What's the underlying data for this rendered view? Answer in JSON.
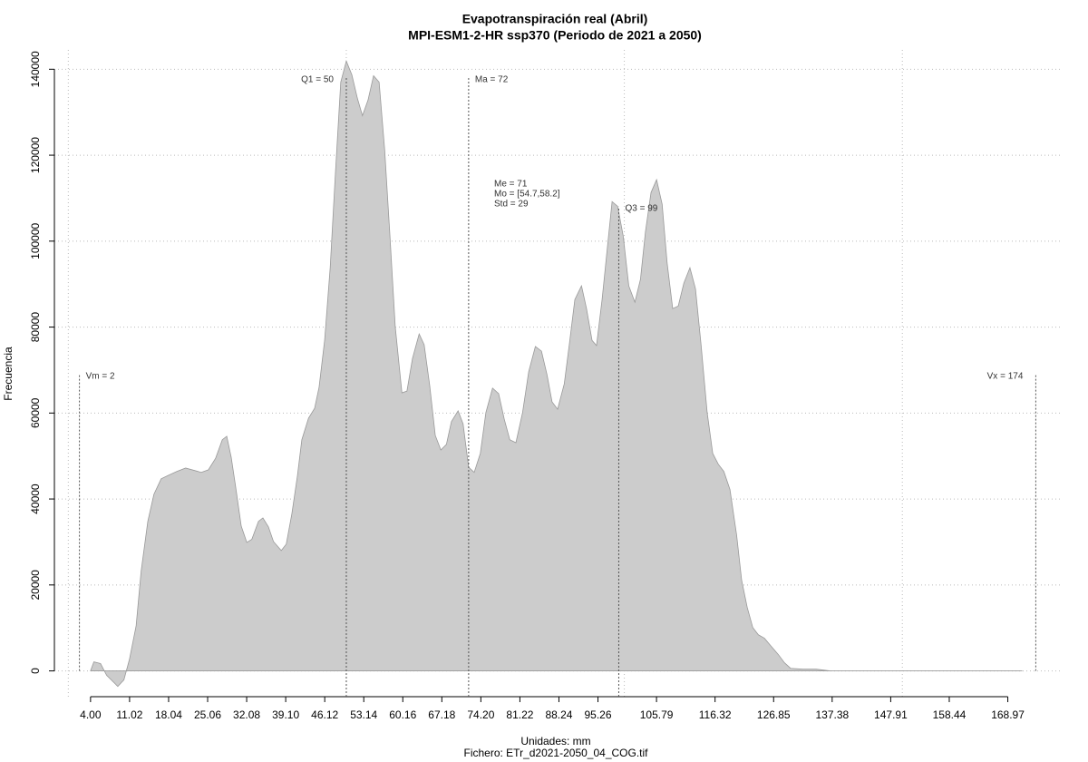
{
  "chart_data": {
    "type": "area",
    "title": "Evapotranspiración real (Abril)",
    "subtitle": "MPI-ESM1-2-HR ssp370 (Periodo de 2021 a 2050)",
    "x_label": "Unidades: mm",
    "caption": "Fichero: ETr_d2021-2050_04_COG.tif",
    "y_label": "Frecuencia",
    "color": "#cccccc",
    "line_color": "#999999",
    "x": [
      4,
      4.6,
      5.8,
      6.9,
      8.9,
      10,
      11,
      12.2,
      13.1,
      14.3,
      15.4,
      16.7,
      18,
      19.5,
      21.1,
      22.8,
      23.9,
      25.2,
      26.5,
      27.7,
      28.5,
      29.3,
      30.1,
      31.1,
      32.1,
      33,
      34.2,
      35,
      36,
      36.9,
      38.3,
      39.2,
      40.2,
      41.2,
      42,
      43.2,
      44.3,
      45.1,
      46.1,
      47.1,
      48,
      49,
      50,
      51,
      52,
      52.9,
      53.9,
      54.9,
      55.9,
      56.9,
      57.8,
      58.8,
      60,
      60.9,
      61.9,
      63.1,
      64,
      65,
      66,
      67,
      68,
      68.9,
      70.1,
      71,
      72,
      73,
      74.1,
      75.1,
      76.3,
      77.4,
      78.4,
      79.4,
      80.5,
      81.7,
      82.8,
      84,
      85.1,
      86.1,
      87,
      88,
      89.2,
      90.1,
      91.1,
      92.3,
      93.2,
      94.2,
      95,
      96,
      97,
      97.8,
      98.8,
      99.8,
      100.8,
      101.9,
      102.9,
      103.8,
      104.8,
      105.8,
      106.8,
      107.7,
      108.7,
      109.7,
      110.7,
      111.8,
      112.8,
      113.8,
      114.9,
      115.9,
      116.9,
      117.9,
      119,
      120.2,
      121.1,
      122.1,
      123.1,
      124.1,
      125.2,
      126.3,
      127.7,
      128.8,
      129.9,
      132.1,
      134.5,
      137,
      171.5
    ],
    "values": [
      0,
      2100,
      1700,
      -1050,
      -3600,
      -2100,
      2700,
      10500,
      23200,
      34800,
      41100,
      44700,
      45500,
      46400,
      47200,
      46600,
      46200,
      46800,
      49500,
      53800,
      54600,
      49700,
      42800,
      33700,
      29900,
      30600,
      34800,
      35600,
      33500,
      30100,
      28000,
      29500,
      36500,
      45300,
      53800,
      58800,
      61100,
      66000,
      76900,
      93800,
      114900,
      137000,
      141900,
      138700,
      133200,
      129200,
      132800,
      138500,
      137000,
      121200,
      102200,
      80100,
      64700,
      65100,
      72700,
      78400,
      75900,
      66400,
      54800,
      51400,
      52700,
      58000,
      60500,
      57500,
      47400,
      46200,
      50600,
      60100,
      65800,
      64500,
      58600,
      53800,
      53100,
      60100,
      69600,
      75500,
      74400,
      68900,
      62600,
      60900,
      66800,
      75900,
      86400,
      89600,
      84300,
      76900,
      75700,
      86400,
      99100,
      109200,
      108100,
      101200,
      89600,
      85800,
      91100,
      102200,
      111300,
      114300,
      108600,
      94900,
      84300,
      84900,
      90200,
      93800,
      88900,
      75900,
      60100,
      50600,
      48100,
      46400,
      42200,
      31600,
      21100,
      14800,
      10100,
      8400,
      7600,
      5900,
      3800,
      1900,
      600,
      400,
      400,
      0,
      0
    ],
    "xlim": [
      -2.5,
      178.5
    ],
    "ylim": [
      -6000,
      144500
    ],
    "xticks": [
      {
        "value": 4,
        "label": "4.00"
      },
      11.02,
      18.04,
      25.06,
      32.08,
      {
        "value": 39.1,
        "label": "39.10"
      },
      46.12,
      53.14,
      60.16,
      67.18,
      {
        "value": 74.2,
        "label": "74.20"
      },
      81.22,
      88.24,
      95.26,
      105.79,
      116.32,
      126.85,
      137.38,
      147.91,
      158.44,
      168.97
    ],
    "yticks": [
      0,
      20000,
      40000,
      60000,
      80000,
      100000,
      120000,
      140000
    ],
    "xgrid": [
      0,
      50,
      100,
      150
    ],
    "grid": true,
    "markers": [
      {
        "label": "Vm = 2",
        "value": 2
      },
      {
        "label": "Q1 = 50",
        "value": 50
      },
      {
        "label": "Ma = 72",
        "value": 72
      },
      {
        "label": "Q3 = 99",
        "value": 99
      },
      {
        "label": "Vx = 174",
        "value": 174
      }
    ],
    "stats": [
      "Me = 71",
      "Mo = [54.7,58.2]",
      "Std = 29"
    ]
  }
}
